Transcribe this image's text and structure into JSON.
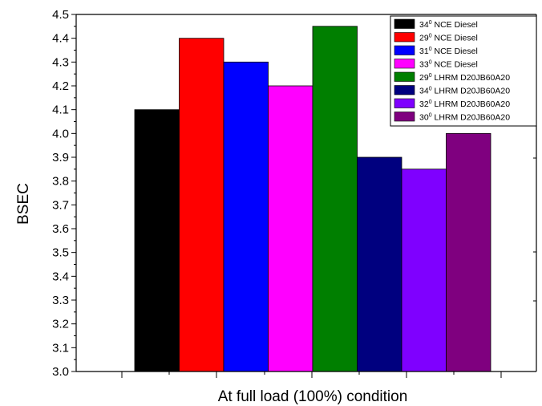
{
  "chart_data": {
    "type": "bar",
    "xlabel": "At full load (100%) condition",
    "ylabel": "BSEC",
    "ylim": [
      3.0,
      4.5
    ],
    "yticks": [
      "3.0",
      "3.1",
      "3.2",
      "3.3",
      "3.4",
      "3.5",
      "3.6",
      "3.7",
      "3.8",
      "3.9",
      "4.0",
      "4.1",
      "4.2",
      "4.3",
      "4.4",
      "4.5"
    ],
    "legend_position": "top-right",
    "series": [
      {
        "name": "34° NCE Diesel",
        "angle": "34",
        "suffix": " NCE Diesel",
        "value": 4.1,
        "color": "#000000"
      },
      {
        "name": "29° NCE Diesel",
        "angle": "29",
        "suffix": " NCE Diesel",
        "value": 4.4,
        "color": "#ff0000"
      },
      {
        "name": "31° NCE Diesel",
        "angle": "31",
        "suffix": " NCE Diesel",
        "value": 4.3,
        "color": "#0000ff"
      },
      {
        "name": "33° NCE Diesel",
        "angle": "33",
        "suffix": " NCE Diesel",
        "value": 4.2,
        "color": "#ff00ff"
      },
      {
        "name": "29° LHRM D20JB60A20",
        "angle": "29",
        "suffix": " LHRM D20JB60A20",
        "value": 4.45,
        "color": "#007f00"
      },
      {
        "name": "34° LHRM D20JB60A20",
        "angle": "34",
        "suffix": " LHRM D20JB60A20",
        "value": 3.9,
        "color": "#00007f"
      },
      {
        "name": "32° LHRM D20JB60A20",
        "angle": "32",
        "suffix": " LHRM D20JB60A20",
        "value": 3.85,
        "color": "#7f00ff"
      },
      {
        "name": "30° LHRM D20JB60A20",
        "angle": "30",
        "suffix": " LHRM D20JB60A20",
        "value": 4.0,
        "color": "#7f007f"
      }
    ]
  }
}
